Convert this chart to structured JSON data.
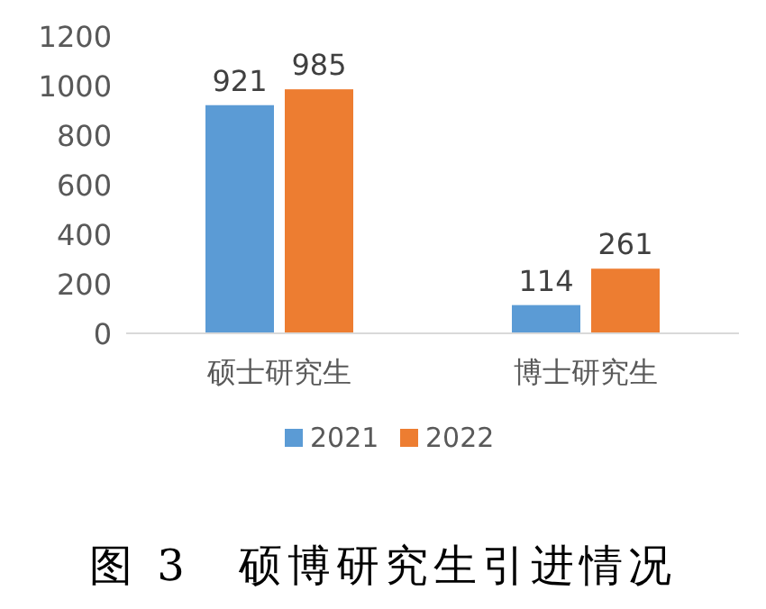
{
  "chart_data": {
    "type": "bar",
    "categories": [
      "硕士研究生",
      "博士研究生"
    ],
    "series": [
      {
        "name": "2021",
        "color": "#5b9bd5",
        "values": [
          921,
          114
        ]
      },
      {
        "name": "2022",
        "color": "#ed7d31",
        "values": [
          985,
          261
        ]
      }
    ],
    "ylim": [
      0,
      1200
    ],
    "yticks": [
      0,
      200,
      400,
      600,
      800,
      1000,
      1200
    ],
    "data_labels": true,
    "legend": "bottom",
    "grid": false,
    "annotations": [
      "图 3　硕博研究生引进情况"
    ]
  }
}
